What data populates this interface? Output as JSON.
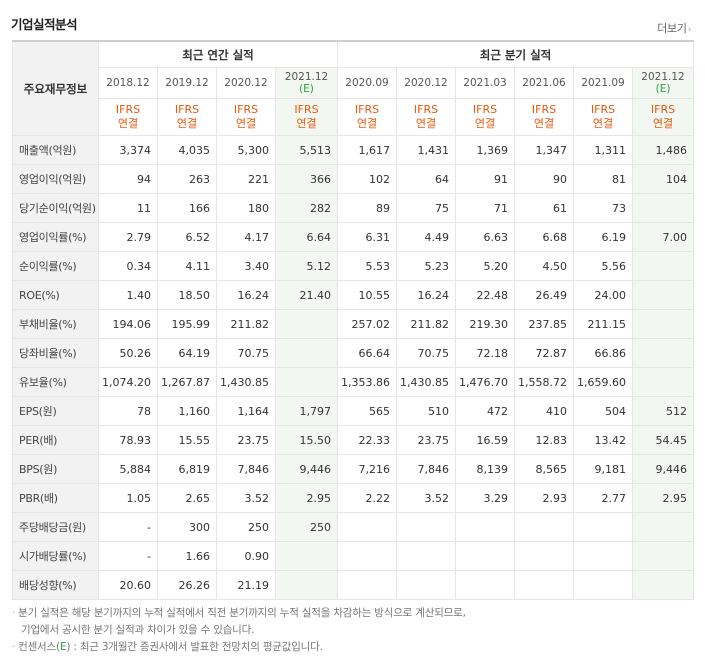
{
  "title": "기업실적분석",
  "more_label": "더보기",
  "header": {
    "row_header": "주요재무정보",
    "annual_group": "최근 연간 실적",
    "quarter_group": "최근 분기 실적",
    "periods": [
      "2018.12",
      "2019.12",
      "2020.12",
      "2021.12",
      "2020.09",
      "2020.12",
      "2021.03",
      "2021.06",
      "2021.09",
      "2021.12"
    ],
    "estimate_mark": "(E)",
    "ifrs": "IFRS",
    "consolidated": "연결"
  },
  "rows": [
    {
      "label": "매출액(억원)",
      "values": [
        "3,374",
        "4,035",
        "5,300",
        "5,513",
        "1,617",
        "1,431",
        "1,369",
        "1,347",
        "1,311",
        "1,486"
      ]
    },
    {
      "label": "영업이익(억원)",
      "values": [
        "94",
        "263",
        "221",
        "366",
        "102",
        "64",
        "91",
        "90",
        "81",
        "104"
      ]
    },
    {
      "label": "당기순이익(억원)",
      "values": [
        "11",
        "166",
        "180",
        "282",
        "89",
        "75",
        "71",
        "61",
        "73",
        ""
      ]
    },
    {
      "label": "영업이익률(%)",
      "values": [
        "2.79",
        "6.52",
        "4.17",
        "6.64",
        "6.31",
        "4.49",
        "6.63",
        "6.68",
        "6.19",
        "7.00"
      ]
    },
    {
      "label": "순이익률(%)",
      "values": [
        "0.34",
        "4.11",
        "3.40",
        "5.12",
        "5.53",
        "5.23",
        "5.20",
        "4.50",
        "5.56",
        ""
      ]
    },
    {
      "label": "ROE(%)",
      "values": [
        "1.40",
        "18.50",
        "16.24",
        "21.40",
        "10.55",
        "16.24",
        "22.48",
        "26.49",
        "24.00",
        ""
      ]
    },
    {
      "label": "부채비율(%)",
      "values": [
        "194.06",
        "195.99",
        "211.82",
        "",
        "257.02",
        "211.82",
        "219.30",
        "237.85",
        "211.15",
        ""
      ]
    },
    {
      "label": "당좌비율(%)",
      "values": [
        "50.26",
        "64.19",
        "70.75",
        "",
        "66.64",
        "70.75",
        "72.18",
        "72.87",
        "66.86",
        ""
      ]
    },
    {
      "label": "유보율(%)",
      "values": [
        "1,074.20",
        "1,267.87",
        "1,430.85",
        "",
        "1,353.86",
        "1,430.85",
        "1,476.70",
        "1,558.72",
        "1,659.60",
        ""
      ]
    },
    {
      "label": "EPS(원)",
      "values": [
        "78",
        "1,160",
        "1,164",
        "1,797",
        "565",
        "510",
        "472",
        "410",
        "504",
        "512"
      ]
    },
    {
      "label": "PER(배)",
      "values": [
        "78.93",
        "15.55",
        "23.75",
        "15.50",
        "22.33",
        "23.75",
        "16.59",
        "12.83",
        "13.42",
        "54.45"
      ]
    },
    {
      "label": "BPS(원)",
      "values": [
        "5,884",
        "6,819",
        "7,846",
        "9,446",
        "7,216",
        "7,846",
        "8,139",
        "8,565",
        "9,181",
        "9,446"
      ]
    },
    {
      "label": "PBR(배)",
      "values": [
        "1.05",
        "2.65",
        "3.52",
        "2.95",
        "2.22",
        "3.52",
        "3.29",
        "2.93",
        "2.77",
        "2.95"
      ]
    },
    {
      "label": "주당배당금(원)",
      "values": [
        "-",
        "300",
        "250",
        "250",
        "",
        "",
        "",
        "",
        "",
        ""
      ]
    },
    {
      "label": "시가배당률(%)",
      "values": [
        "-",
        "1.66",
        "0.90",
        "",
        "",
        "",
        "",
        "",
        "",
        ""
      ]
    },
    {
      "label": "배당성향(%)",
      "values": [
        "20.60",
        "26.26",
        "21.19",
        "",
        "",
        "",
        "",
        "",
        "",
        ""
      ]
    }
  ],
  "notes": {
    "line1": "분기 실적은 해당 분기까지의 누적 실적에서 직전 분기까지의 누적 실적을 차감하는 방식으로 계산되므로,",
    "line2": "기업에서 공시한 분기 실적과 차이가 있을 수 있습니다.",
    "line3_a": "컨센서스(",
    "line3_e": "E",
    "line3_b": ") : 최근 3개월간 증권사에서 발표한 전망치의 평균값입니다."
  }
}
